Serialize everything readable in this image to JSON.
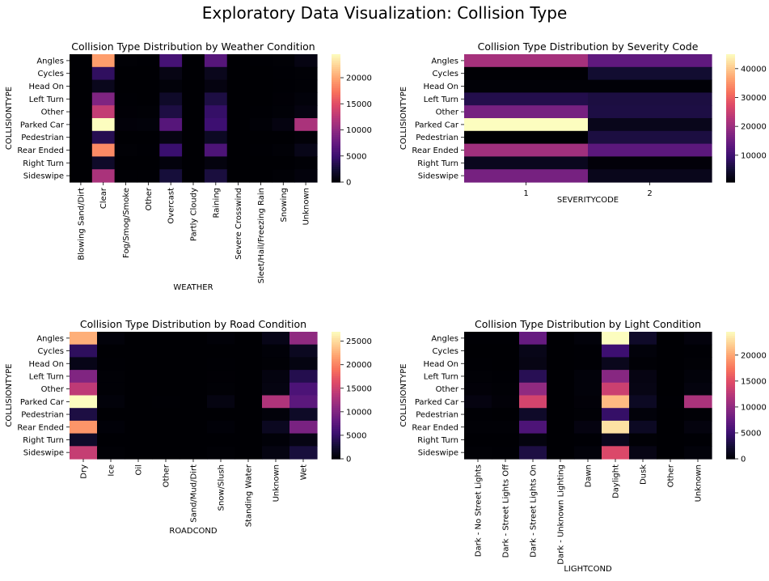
{
  "figure": {
    "title": "Exploratory Data Visualization: Collision Type"
  },
  "chart_data": [
    {
      "type": "heatmap",
      "title": "Collision Type Distribution by Weather Condition",
      "xlabel": "WEATHER",
      "ylabel": "COLLISIONTYPE",
      "x": [
        "Blowing Sand/Dirt",
        "Clear",
        "Fog/Smog/Smoke",
        "Other",
        "Overcast",
        "Partly Cloudy",
        "Raining",
        "Severe Crosswind",
        "Sleet/Hail/Freezing Rain",
        "Snowing",
        "Unknown"
      ],
      "y": [
        "Angles",
        "Cycles",
        "Head On",
        "Left Turn",
        "Other",
        "Parked Car",
        "Pedestrian",
        "Rear Ended",
        "Right Turn",
        "Sideswipe"
      ],
      "values": [
        [
          20,
          19500,
          100,
          50,
          5500,
          10,
          6500,
          10,
          50,
          100,
          700
        ],
        [
          5,
          4200,
          20,
          5,
          800,
          5,
          1200,
          5,
          5,
          30,
          100
        ],
        [
          5,
          1200,
          20,
          5,
          300,
          5,
          600,
          5,
          10,
          30,
          100
        ],
        [
          10,
          9000,
          50,
          20,
          1800,
          5,
          3000,
          5,
          20,
          80,
          300
        ],
        [
          10,
          13000,
          80,
          100,
          3000,
          5,
          4500,
          5,
          40,
          150,
          600
        ],
        [
          30,
          24500,
          250,
          300,
          6500,
          5,
          5000,
          5,
          150,
          600,
          11500
        ],
        [
          5,
          3600,
          10,
          5,
          700,
          5,
          1500,
          5,
          5,
          20,
          200
        ],
        [
          10,
          18500,
          100,
          50,
          4800,
          5,
          6000,
          5,
          30,
          150,
          1000
        ],
        [
          5,
          1800,
          10,
          5,
          400,
          5,
          500,
          5,
          5,
          10,
          100
        ],
        [
          10,
          11500,
          50,
          30,
          2600,
          5,
          2800,
          5,
          20,
          100,
          400
        ]
      ],
      "colorbar": {
        "min": 0,
        "max": 24500,
        "ticks": [
          0,
          5000,
          10000,
          15000,
          20000
        ]
      },
      "colormap": "magma"
    },
    {
      "type": "heatmap",
      "title": "Collision Type Distribution by Severity Code",
      "xlabel": "SEVERITYCODE",
      "ylabel": "COLLISIONTYPE",
      "x": [
        "1",
        "2"
      ],
      "y": [
        "Angles",
        "Cycles",
        "Head On",
        "Left Turn",
        "Other",
        "Parked Car",
        "Pedestrian",
        "Rear Ended",
        "Right Turn",
        "Sideswipe"
      ],
      "values": [
        [
          21000,
          13500
        ],
        [
          800,
          4700
        ],
        [
          1000,
          1000
        ],
        [
          6800,
          6000
        ],
        [
          16000,
          6200
        ],
        [
          45000,
          2700
        ],
        [
          700,
          6000
        ],
        [
          20500,
          13000
        ],
        [
          3000,
          1100
        ],
        [
          16000,
          2700
        ]
      ],
      "colorbar": {
        "min": 700,
        "max": 45000,
        "ticks": [
          10000,
          20000,
          30000,
          40000
        ]
      },
      "colormap": "magma"
    },
    {
      "type": "heatmap",
      "title": "Collision Type Distribution by Road Condition",
      "xlabel": "ROADCOND",
      "ylabel": "COLLISIONTYPE",
      "x": [
        "Dry",
        "Ice",
        "Oil",
        "Other",
        "Sand/Mud/Dirt",
        "Snow/Slush",
        "Standing Water",
        "Unknown",
        "Wet"
      ],
      "y": [
        "Angles",
        "Cycles",
        "Head On",
        "Left Turn",
        "Other",
        "Parked Car",
        "Pedestrian",
        "Rear Ended",
        "Right Turn",
        "Sideswipe"
      ],
      "values": [
        [
          22500,
          300,
          10,
          20,
          20,
          200,
          20,
          1000,
          11000
        ],
        [
          4500,
          20,
          5,
          5,
          5,
          20,
          5,
          200,
          1500
        ],
        [
          1000,
          50,
          5,
          5,
          5,
          50,
          5,
          100,
          700
        ],
        [
          10000,
          100,
          5,
          10,
          10,
          80,
          10,
          600,
          3800
        ],
        [
          14000,
          100,
          10,
          20,
          10,
          100,
          10,
          700,
          6500
        ],
        [
          27000,
          300,
          10,
          60,
          20,
          700,
          20,
          13000,
          7500
        ],
        [
          3300,
          20,
          5,
          5,
          5,
          20,
          5,
          300,
          1900
        ],
        [
          21000,
          200,
          20,
          20,
          20,
          200,
          20,
          1500,
          9500
        ],
        [
          2000,
          20,
          5,
          5,
          5,
          20,
          5,
          200,
          800
        ],
        [
          14500,
          100,
          10,
          10,
          10,
          100,
          10,
          700,
          3000
        ]
      ],
      "colorbar": {
        "min": 0,
        "max": 27000,
        "ticks": [
          0,
          5000,
          10000,
          15000,
          20000,
          25000
        ]
      },
      "colormap": "magma"
    },
    {
      "type": "heatmap",
      "title": "Collision Type Distribution by Light Condition",
      "xlabel": "LIGHTCOND",
      "ylabel": "COLLISIONTYPE",
      "x": [
        "Dark - No Street Lights",
        "Dark - Street Lights Off",
        "Dark - Street Lights On",
        "Dark - Unknown Lighting",
        "Dawn",
        "Daylight",
        "Dusk",
        "Other",
        "Unknown"
      ],
      "y": [
        "Angles",
        "Cycles",
        "Head On",
        "Left Turn",
        "Other",
        "Parked Car",
        "Pedestrian",
        "Rear Ended",
        "Right Turn",
        "Sideswipe"
      ],
      "values": [
        [
          50,
          50,
          7500,
          5,
          300,
          24500,
          1800,
          20,
          400
        ],
        [
          20,
          20,
          1000,
          5,
          50,
          5000,
          300,
          5,
          50
        ],
        [
          50,
          20,
          800,
          5,
          50,
          1200,
          100,
          5,
          100
        ],
        [
          100,
          50,
          3700,
          5,
          300,
          9500,
          700,
          10,
          300
        ],
        [
          200,
          100,
          10000,
          5,
          300,
          13500,
          800,
          20,
          500
        ],
        [
          600,
          200,
          14000,
          5,
          200,
          21000,
          1500,
          50,
          11500
        ],
        [
          50,
          20,
          1800,
          5,
          100,
          4500,
          300,
          5,
          100
        ],
        [
          100,
          100,
          6000,
          5,
          600,
          23000,
          1500,
          20,
          500
        ],
        [
          20,
          20,
          500,
          5,
          50,
          1200,
          100,
          5,
          50
        ],
        [
          100,
          50,
          3000,
          5,
          300,
          14500,
          800,
          10,
          300
        ]
      ],
      "colorbar": {
        "min": 0,
        "max": 24500,
        "ticks": [
          0,
          5000,
          10000,
          15000,
          20000
        ]
      },
      "colormap": "magma"
    }
  ]
}
